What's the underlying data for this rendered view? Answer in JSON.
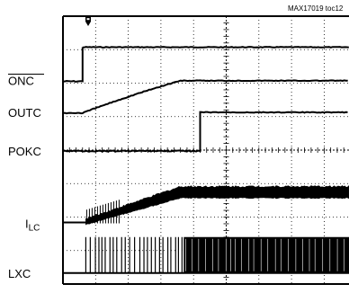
{
  "chart_data": {
    "type": "line",
    "figure_id": "MAX17019 toc12",
    "grid": true,
    "divisions": {
      "x": 10,
      "y": 8
    },
    "channels": [
      {
        "name": "ONC",
        "overline": true,
        "style": "step",
        "low": 0,
        "high": 1,
        "rise_at": 0.6
      },
      {
        "name": "OUTC",
        "style": "ramp",
        "low": 0,
        "high": 1,
        "ramp_start": 0.6,
        "ramp_end": 3.6
      },
      {
        "name": "POKC",
        "style": "step",
        "low": 0,
        "high": 1,
        "rise_at": 4.2
      },
      {
        "name": "ILC",
        "name_main": "I",
        "name_sub": "LC",
        "style": "current_ramp",
        "ramp_start": 0.7,
        "ramp_end": 3.6
      },
      {
        "name": "LXC",
        "style": "switching",
        "start": 0.7,
        "dense_from": 3.7
      }
    ]
  }
}
